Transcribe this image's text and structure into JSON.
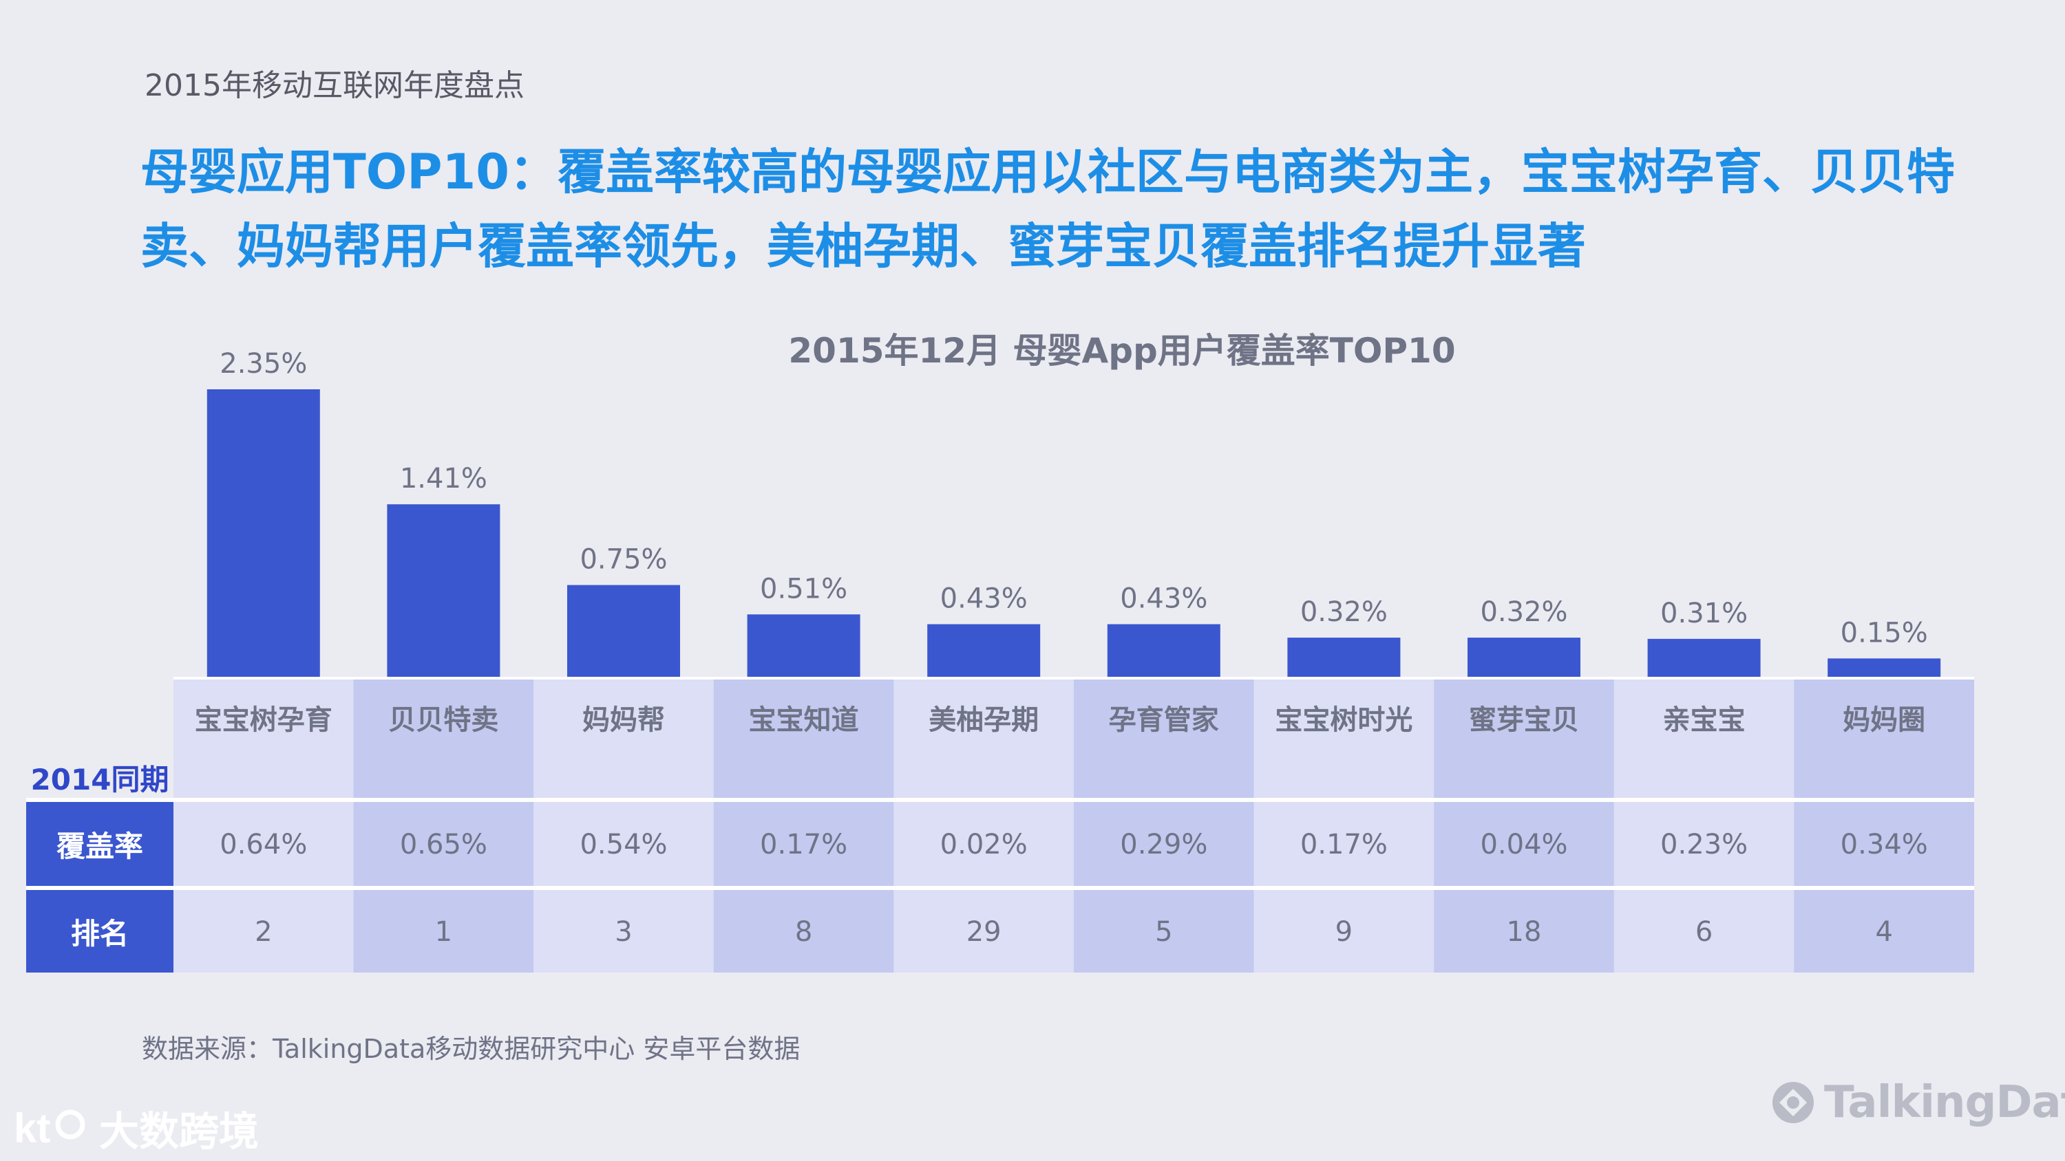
{
  "header": {
    "topic": "2015年移动互联网年度盘点",
    "headline": "母婴应用TOP10：覆盖率较高的母婴应用以社区与电商类为主，宝宝树孕育、贝贝特卖、妈妈帮用户覆盖率领先，美柚孕期、蜜芽宝贝覆盖排名提升显著"
  },
  "chart_data": {
    "type": "bar",
    "title": "2015年12月  母婴App用户覆盖率TOP10",
    "categories": [
      "宝宝树孕育",
      "贝贝特卖",
      "妈妈帮",
      "宝宝知道",
      "美柚孕期",
      "孕育管家",
      "宝宝树时光",
      "蜜芽宝贝",
      "亲宝宝",
      "妈妈圈"
    ],
    "values": [
      2.35,
      1.41,
      0.75,
      0.51,
      0.43,
      0.43,
      0.32,
      0.32,
      0.31,
      0.15
    ],
    "value_labels": [
      "2.35%",
      "1.41%",
      "0.75%",
      "0.51%",
      "0.43%",
      "0.43%",
      "0.32%",
      "0.32%",
      "0.31%",
      "0.15%"
    ],
    "unit": "%",
    "ylim": [
      0,
      2.35
    ],
    "comparison_2014": {
      "section_label": "2014同期",
      "coverage_label": "覆盖率",
      "rank_label": "排名",
      "coverage": [
        "0.64%",
        "0.65%",
        "0.54%",
        "0.17%",
        "0.02%",
        "0.29%",
        "0.17%",
        "0.04%",
        "0.23%",
        "0.34%"
      ],
      "rank": [
        "2",
        "1",
        "3",
        "8",
        "29",
        "5",
        "9",
        "18",
        "6",
        "4"
      ]
    }
  },
  "colors": {
    "bar": "#3b57cf",
    "headline": "#1d8ee6",
    "cell_light": "#dcdff5",
    "cell_dark": "#c3c9ef"
  },
  "footer": {
    "source": "数据来源：TalkingData移动数据研究中心 安卓平台数据",
    "watermark_left": "大数跨境",
    "watermark_right": "TalkingData"
  }
}
